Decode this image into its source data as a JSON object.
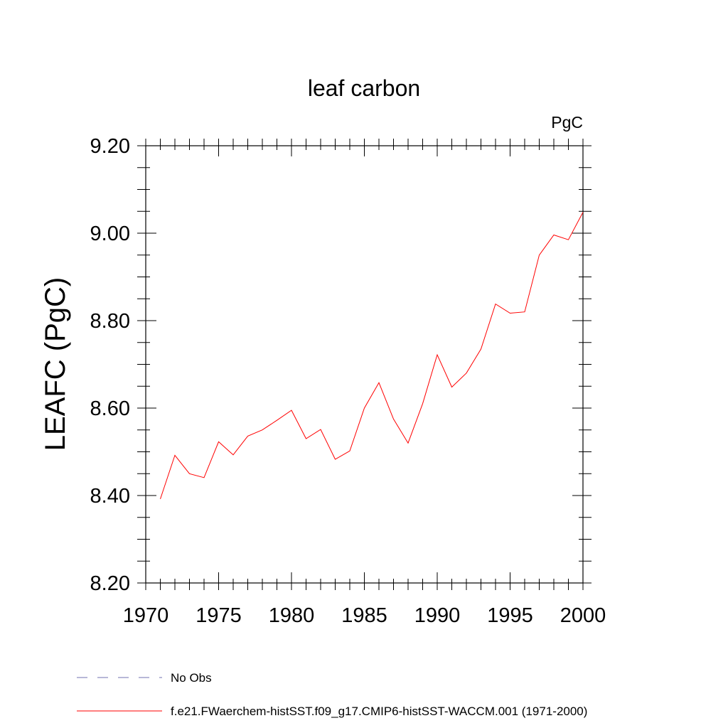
{
  "chart_data": {
    "type": "line",
    "title": "leaf carbon",
    "units": "PgC",
    "xlabel": "",
    "ylabel": "LEAFC  (PgC)",
    "xlim": [
      1970,
      2000
    ],
    "ylim": [
      8.2,
      9.2
    ],
    "x_ticks": [
      1970,
      1975,
      1980,
      1985,
      1990,
      1995,
      2000
    ],
    "x_tick_labels": [
      "1970",
      "1975",
      "1980",
      "1985",
      "1990",
      "1995",
      "2000"
    ],
    "y_ticks": [
      8.2,
      8.4,
      8.6,
      8.8,
      9.0,
      9.2
    ],
    "y_tick_labels": [
      "8.20",
      "8.40",
      "8.60",
      "8.80",
      "9.00",
      "9.20"
    ],
    "grid": false,
    "legend_position": "bottom-left",
    "series": [
      {
        "name": "f.e21.FWaerchem-histSST.f09_g17.CMIP6-histSST-WACCM.001 (1971-2000)",
        "color": "#ff0000",
        "style": "solid",
        "x": [
          1971,
          1972,
          1973,
          1974,
          1975,
          1976,
          1977,
          1978,
          1979,
          1980,
          1981,
          1982,
          1983,
          1984,
          1985,
          1986,
          1987,
          1988,
          1989,
          1990,
          1991,
          1992,
          1993,
          1994,
          1995,
          1996,
          1997,
          1998,
          1999,
          2000
        ],
        "values": [
          8.392,
          8.492,
          8.45,
          8.441,
          8.523,
          8.493,
          8.536,
          8.55,
          8.572,
          8.595,
          8.53,
          8.551,
          8.483,
          8.502,
          8.6,
          8.658,
          8.575,
          8.52,
          8.61,
          8.722,
          8.648,
          8.68,
          8.735,
          8.838,
          8.817,
          8.82,
          8.95,
          8.996,
          8.985,
          9.048
        ]
      },
      {
        "name": "No Obs",
        "color": "#7070b0",
        "style": "dashed",
        "x": [],
        "values": []
      }
    ]
  }
}
